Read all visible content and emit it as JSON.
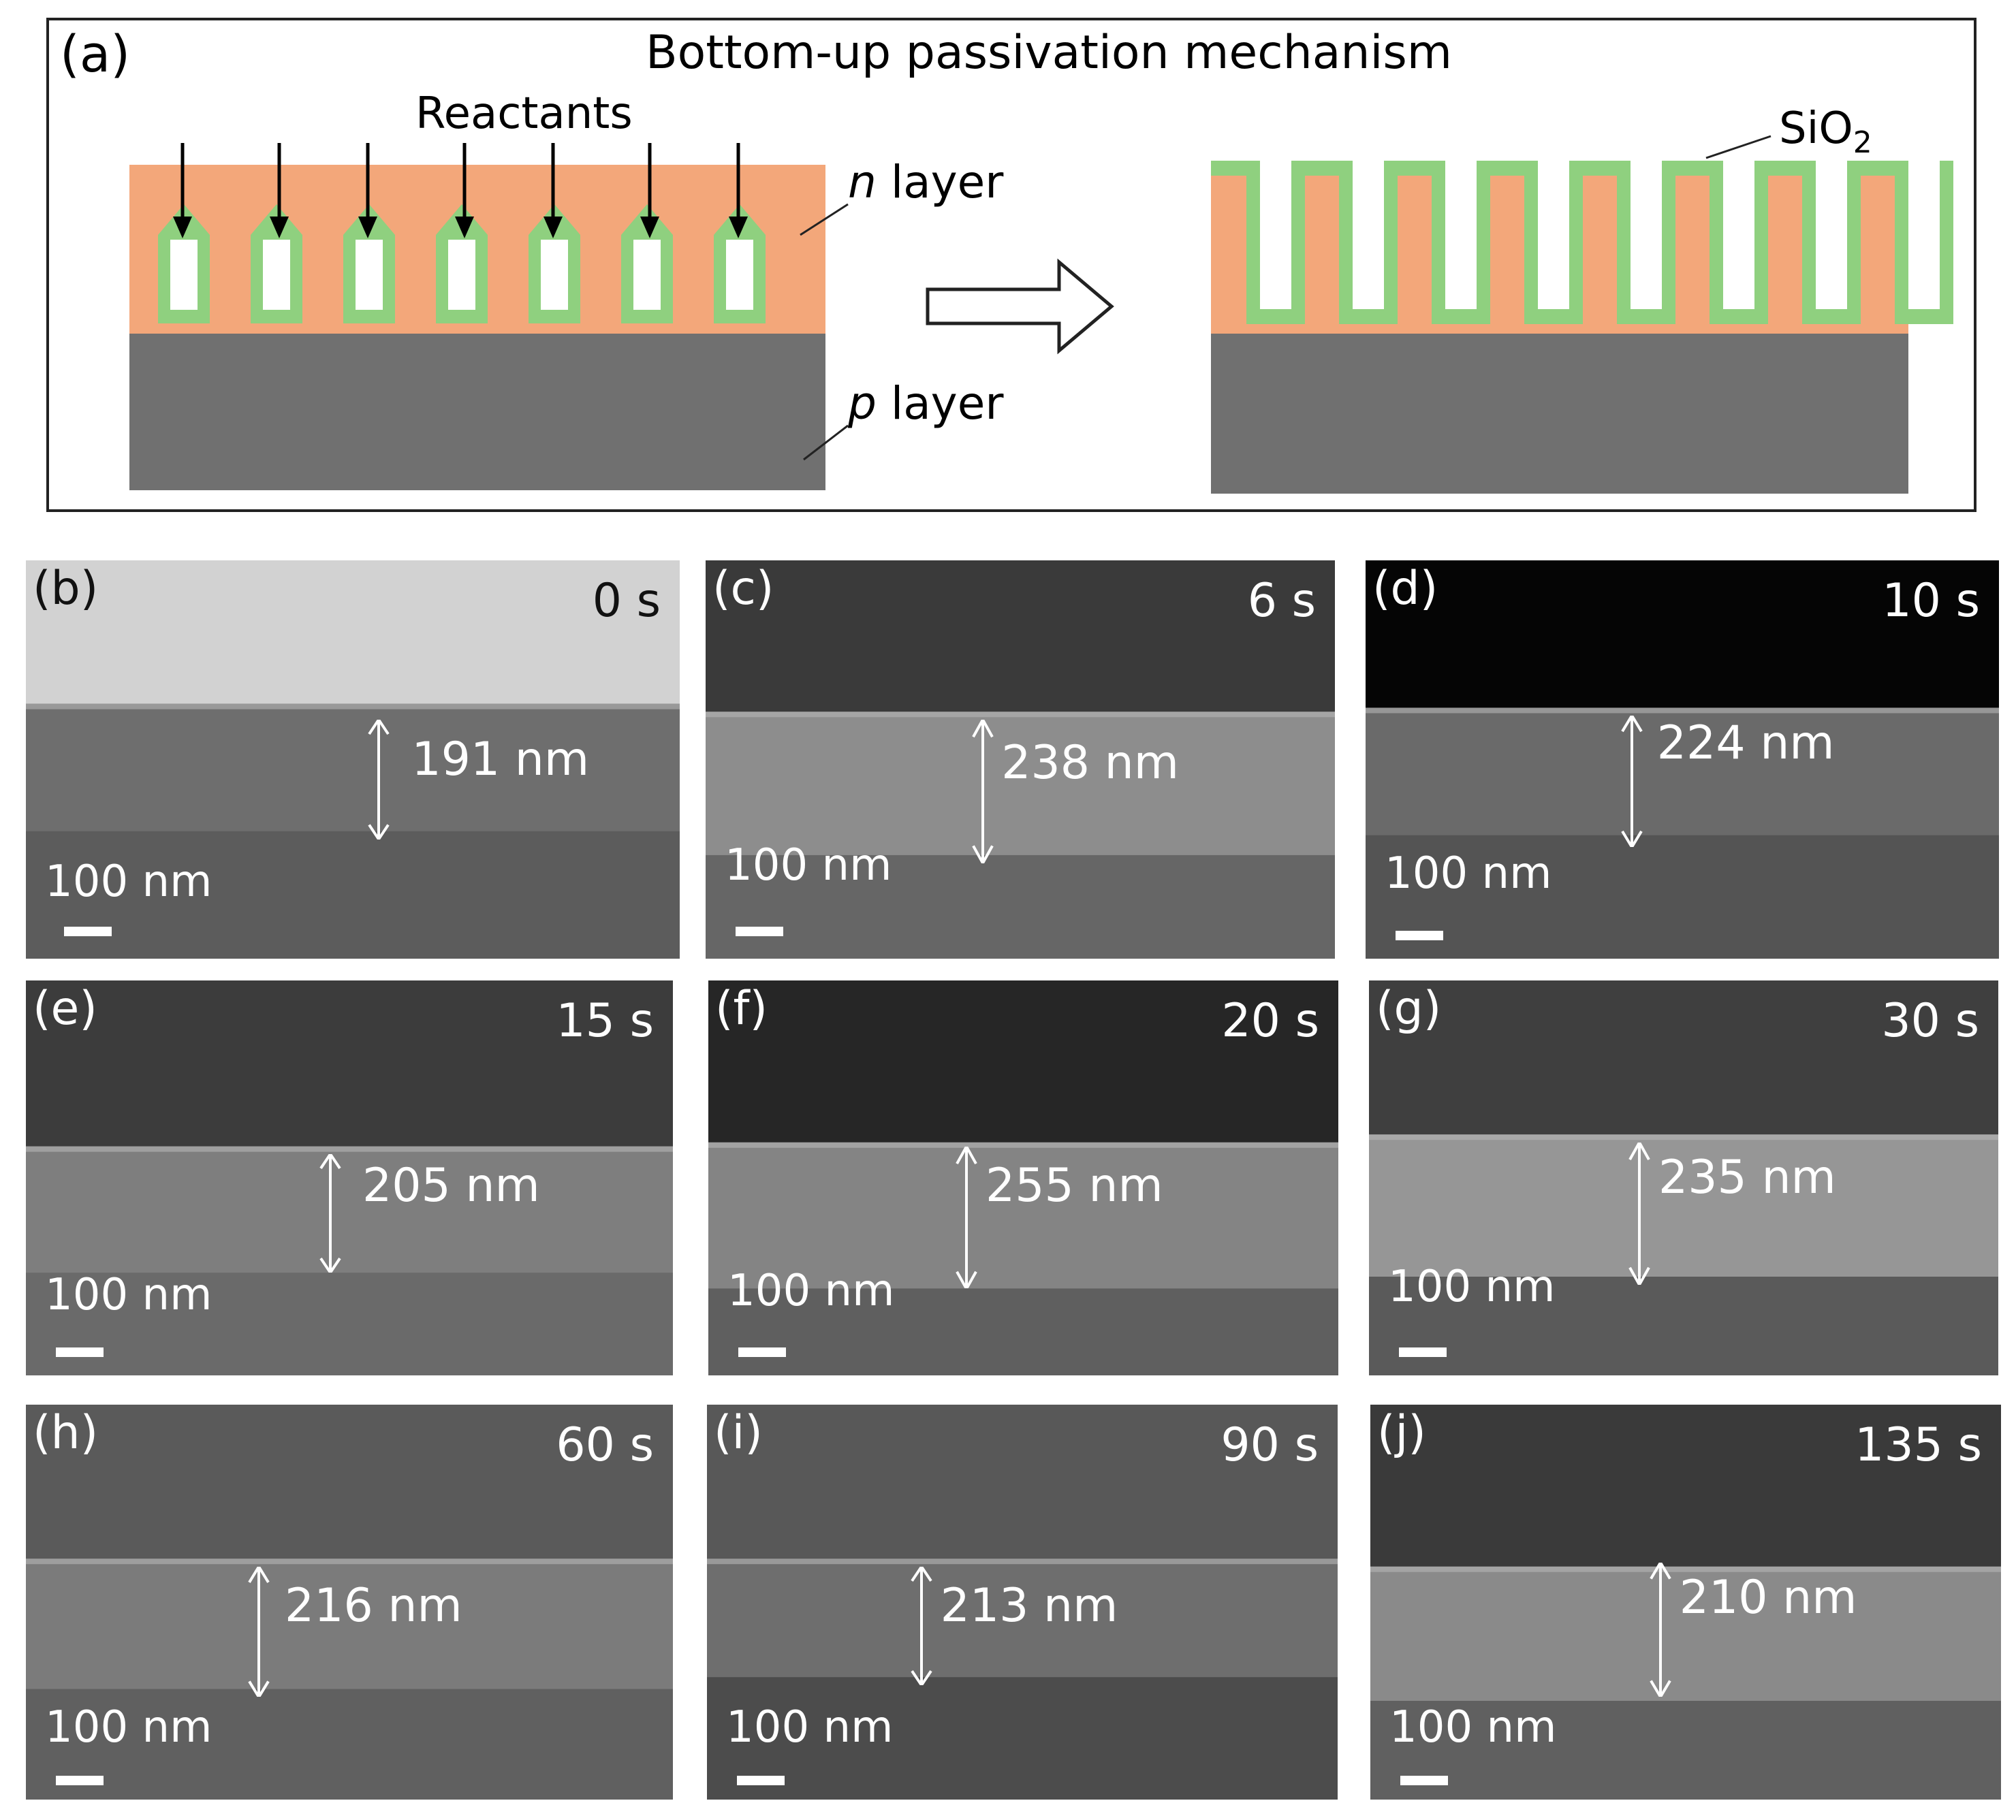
{
  "panel_a": {
    "label": "(a)",
    "title": "Bottom-up passivation mechanism",
    "reactants": "Reactants",
    "n_layer": {
      "italic": "n",
      "text": " layer"
    },
    "p_layer": {
      "italic": "p",
      "text": " layer"
    },
    "sio2": {
      "text": "SiO",
      "sub": "2"
    },
    "colors": {
      "n_layer": "#f3a77a",
      "p_layer": "#707070",
      "sio2": "#8fd07f"
    }
  },
  "sem_panels": [
    {
      "label": "(b)",
      "time": "0 s",
      "thickness": "191 nm",
      "scale": "100 nm"
    },
    {
      "label": "(c)",
      "time": "6 s",
      "thickness": "238 nm",
      "scale": "100 nm"
    },
    {
      "label": "(d)",
      "time": "10 s",
      "thickness": "224 nm",
      "scale": "100 nm"
    },
    {
      "label": "(e)",
      "time": "15 s",
      "thickness": "205 nm",
      "scale": "100 nm"
    },
    {
      "label": "(f)",
      "time": "20 s",
      "thickness": "255 nm",
      "scale": "100 nm"
    },
    {
      "label": "(g)",
      "time": "30 s",
      "thickness": "235 nm",
      "scale": "100 nm"
    },
    {
      "label": "(h)",
      "time": "60 s",
      "thickness": "216 nm",
      "scale": "100 nm"
    },
    {
      "label": "(i)",
      "time": "90 s",
      "thickness": "213 nm",
      "scale": "100 nm"
    },
    {
      "label": "(j)",
      "time": "135 s",
      "thickness": "210 nm",
      "scale": "100 nm"
    }
  ]
}
